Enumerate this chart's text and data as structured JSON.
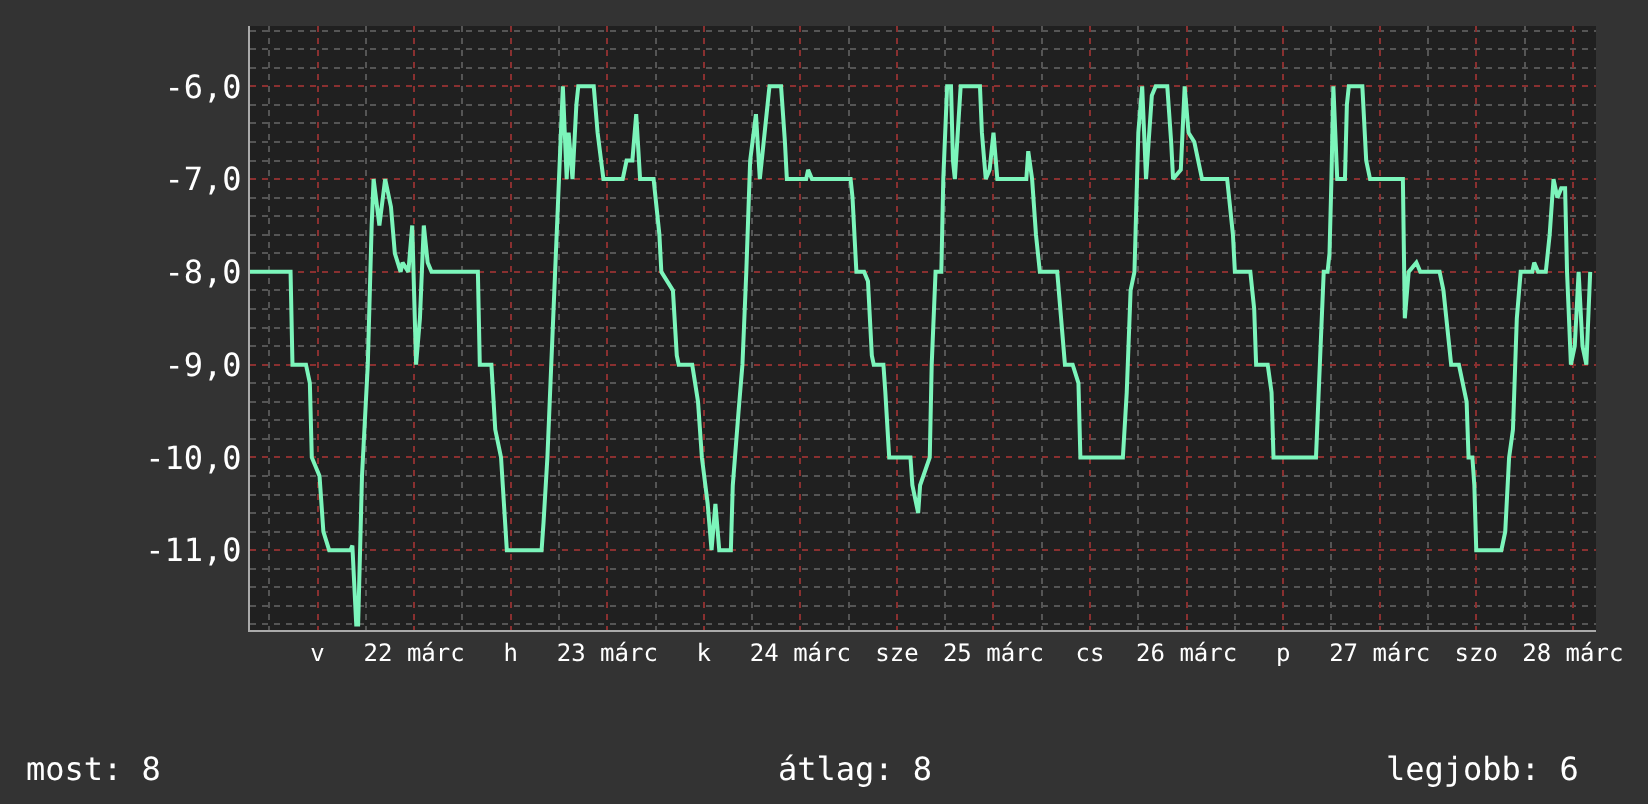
{
  "chart_data": {
    "type": "line",
    "x": [
      21.65,
      21.86,
      21.87,
      21.94,
      21.96,
      21.97,
      22.01,
      22.03,
      22.06,
      22.17,
      22.18,
      22.2,
      22.21,
      22.22,
      22.23,
      22.26,
      22.28,
      22.29,
      22.32,
      22.35,
      22.38,
      22.4,
      22.43,
      22.44,
      22.47,
      22.49,
      22.51,
      22.53,
      22.55,
      22.57,
      22.59,
      22.83,
      22.84,
      22.9,
      22.92,
      22.95,
      22.98,
      23.16,
      23.17,
      23.19,
      23.21,
      23.23,
      23.24,
      23.26,
      23.27,
      23.29,
      23.3,
      23.32,
      23.34,
      23.35,
      23.43,
      23.45,
      23.48,
      23.58,
      23.6,
      23.63,
      23.65,
      23.67,
      23.74,
      23.77,
      23.78,
      23.84,
      23.86,
      23.87,
      23.94,
      23.97,
      23.99,
      24.02,
      24.04,
      24.06,
      24.08,
      24.14,
      24.15,
      24.18,
      24.2,
      24.22,
      24.24,
      24.27,
      24.29,
      24.34,
      24.4,
      24.42,
      24.43,
      24.53,
      24.54,
      24.56,
      24.76,
      24.77,
      24.79,
      24.83,
      24.85,
      24.87,
      24.88,
      24.93,
      24.94,
      24.96,
      25.07,
      25.08,
      25.11,
      25.12,
      25.17,
      25.18,
      25.2,
      25.23,
      25.24,
      25.26,
      25.28,
      25.29,
      25.3,
      25.33,
      25.43,
      25.44,
      25.46,
      25.48,
      25.5,
      25.52,
      25.67,
      25.68,
      25.7,
      25.72,
      25.74,
      25.83,
      25.85,
      25.87,
      25.91,
      25.94,
      25.95,
      26.17,
      26.19,
      26.21,
      26.23,
      26.25,
      26.27,
      26.29,
      26.32,
      26.34,
      26.4,
      26.42,
      26.43,
      26.47,
      26.49,
      26.51,
      26.54,
      26.58,
      26.71,
      26.74,
      26.75,
      26.83,
      26.85,
      26.86,
      26.92,
      26.94,
      26.95,
      27.17,
      27.19,
      27.21,
      27.23,
      27.24,
      27.25,
      27.26,
      27.28,
      27.32,
      27.33,
      27.34,
      27.41,
      27.43,
      27.45,
      27.62,
      27.63,
      27.65,
      27.69,
      27.71,
      27.81,
      27.83,
      27.85,
      27.87,
      27.91,
      27.95,
      27.96,
      27.98,
      27.99,
      28.0,
      28.13,
      28.15,
      28.17,
      28.19,
      28.21,
      28.23,
      28.29,
      28.3,
      28.32,
      28.36,
      28.38,
      28.4,
      28.42,
      28.44,
      28.46,
      28.47,
      28.49,
      28.51,
      28.53,
      28.55,
      28.57,
      28.59
    ],
    "series": [
      {
        "color": "#7cf5bb",
        "values": [
          -8.0,
          -8.0,
          -9.0,
          -9.0,
          -9.2,
          -10.0,
          -10.2,
          -10.8,
          -11.0,
          -11.0,
          -10.95,
          -11.8,
          -11.8,
          -11.0,
          -10.2,
          -9.0,
          -7.5,
          -7.0,
          -7.5,
          -7.0,
          -7.3,
          -7.8,
          -8.0,
          -7.9,
          -8.0,
          -7.5,
          -9.0,
          -8.5,
          -7.5,
          -7.9,
          -8.0,
          -8.0,
          -9.0,
          -9.0,
          -9.7,
          -10.0,
          -11.0,
          -11.0,
          -10.7,
          -10.0,
          -9.0,
          -8.0,
          -7.5,
          -6.5,
          -6.0,
          -7.0,
          -6.5,
          -7.0,
          -6.2,
          -6.0,
          -6.0,
          -6.5,
          -7.0,
          -7.0,
          -6.8,
          -6.8,
          -6.3,
          -7.0,
          -7.0,
          -7.6,
          -8.0,
          -8.2,
          -8.9,
          -9.0,
          -9.0,
          -9.4,
          -10.0,
          -10.5,
          -11.0,
          -10.5,
          -11.0,
          -11.0,
          -10.3,
          -9.5,
          -9.0,
          -8.0,
          -6.8,
          -6.3,
          -7.0,
          -6.0,
          -6.0,
          -6.6,
          -7.0,
          -7.0,
          -6.9,
          -7.0,
          -7.0,
          -7.2,
          -8.0,
          -8.0,
          -8.1,
          -8.9,
          -9.0,
          -9.0,
          -9.3,
          -10.0,
          -10.0,
          -10.3,
          -10.6,
          -10.3,
          -10.0,
          -9.0,
          -8.0,
          -8.0,
          -7.0,
          -6.0,
          -6.0,
          -6.8,
          -7.0,
          -6.0,
          -6.0,
          -6.5,
          -7.0,
          -6.9,
          -6.5,
          -7.0,
          -7.0,
          -6.7,
          -7.0,
          -7.6,
          -8.0,
          -8.0,
          -8.5,
          -9.0,
          -9.0,
          -9.2,
          -10.0,
          -10.0,
          -9.3,
          -8.2,
          -8.0,
          -6.5,
          -6.0,
          -7.0,
          -6.1,
          -6.0,
          -6.0,
          -6.6,
          -7.0,
          -6.9,
          -6.0,
          -6.5,
          -6.6,
          -7.0,
          -7.0,
          -7.6,
          -8.0,
          -8.0,
          -8.4,
          -9.0,
          -9.0,
          -9.3,
          -10.0,
          -10.0,
          -9.0,
          -8.0,
          -8.0,
          -7.8,
          -7.0,
          -6.0,
          -7.0,
          -7.0,
          -6.2,
          -6.0,
          -6.0,
          -6.8,
          -7.0,
          -7.0,
          -8.5,
          -8.0,
          -7.9,
          -8.0,
          -8.0,
          -8.2,
          -8.6,
          -9.0,
          -9.0,
          -9.4,
          -10.0,
          -10.0,
          -10.3,
          -11.0,
          -11.0,
          -10.8,
          -10.0,
          -9.7,
          -8.5,
          -8.0,
          -8.0,
          -7.9,
          -8.0,
          -8.0,
          -7.6,
          -7.0,
          -7.2,
          -7.1,
          -7.1,
          -8.0,
          -9.0,
          -8.8,
          -8.0,
          -8.8,
          -9.0,
          -8.0
        ]
      }
    ],
    "xlim": [
      21.65,
      28.62
    ],
    "xticks": [
      {
        "value": 22,
        "label": "v"
      },
      {
        "value": 22.5,
        "label": "22 márc"
      },
      {
        "value": 23,
        "label": "h"
      },
      {
        "value": 23.5,
        "label": "23 márc"
      },
      {
        "value": 24,
        "label": "k"
      },
      {
        "value": 24.5,
        "label": "24 márc"
      },
      {
        "value": 25,
        "label": "sze"
      },
      {
        "value": 25.5,
        "label": "25 márc"
      },
      {
        "value": 26,
        "label": "cs"
      },
      {
        "value": 26.5,
        "label": "26 márc"
      },
      {
        "value": 27,
        "label": "p"
      },
      {
        "value": 27.5,
        "label": "27 márc"
      },
      {
        "value": 28,
        "label": "szo"
      },
      {
        "value": 28.5,
        "label": "28 márc"
      }
    ],
    "ylim": [
      -11.86,
      -5.35
    ],
    "yticks": [
      {
        "value": -6,
        "label": "-6,0"
      },
      {
        "value": -7,
        "label": "-7,0"
      },
      {
        "value": -8,
        "label": "-8,0"
      },
      {
        "value": -9,
        "label": "-9,0"
      },
      {
        "value": -10,
        "label": "-10,0"
      },
      {
        "value": -11,
        "label": "-11,0"
      }
    ],
    "grid": true,
    "annotations": [
      "most: 8",
      "átlag: 8",
      "legjobb: 6"
    ]
  }
}
